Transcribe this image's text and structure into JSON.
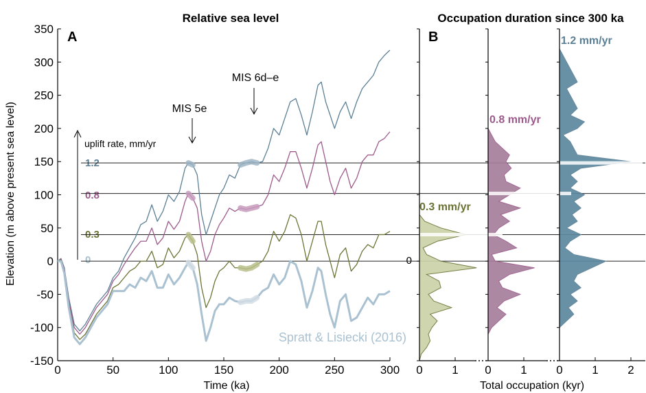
{
  "colors": {
    "rate_1_2": "#5b7f95",
    "rate_0_8": "#9c5a8b",
    "rate_0_3": "#6b7335",
    "rate_0": "#a9c1d1",
    "fill_1_2": "#5d889f",
    "fill_0_8": "#a57e9c",
    "fill_0_3": "#ccd2a8",
    "axis": "#000000"
  },
  "panel_a": {
    "letter": "A",
    "title": "Relative sea level",
    "xlabel": "Time (ka)",
    "ylabel": "Elevation (m above present sea level)",
    "uplift_label": "uplift rate, mm/yr",
    "annotation_mis5e": "MIS 5e",
    "annotation_mis6": "MIS 6d–e",
    "source": "Spratt & Lisiecki (2016)",
    "rate_labels": [
      "1.2",
      "0.8",
      "0.3",
      "0"
    ]
  },
  "panel_b": {
    "letter": "B",
    "title": "Occupation duration since 300 ka",
    "xlabel": "Total occupation (kyr)",
    "zero_label": "0",
    "rate_labels": [
      "0.3 mm/yr",
      "0.8 mm/yr",
      "1.2 mm/yr"
    ]
  },
  "chart_data": [
    {
      "type": "line",
      "title": "Relative sea level",
      "xlabel": "Time (ka)",
      "ylabel": "Elevation (m above present sea level)",
      "xlim": [
        0,
        300
      ],
      "ylim": [
        -150,
        350
      ],
      "xticks": [
        0,
        50,
        100,
        150,
        200,
        250,
        300
      ],
      "yticks": [
        -150,
        -100,
        -50,
        0,
        50,
        100,
        150,
        200,
        250,
        300,
        350
      ],
      "horizontal_lines": [
        0,
        40,
        102,
        148
      ],
      "x": [
        0,
        3,
        6,
        10,
        15,
        20,
        25,
        30,
        35,
        40,
        45,
        50,
        55,
        60,
        65,
        70,
        75,
        80,
        85,
        90,
        95,
        100,
        105,
        110,
        115,
        118,
        122,
        126,
        130,
        134,
        138,
        142,
        146,
        150,
        155,
        160,
        165,
        170,
        175,
        180,
        185,
        190,
        195,
        200,
        205,
        210,
        215,
        220,
        225,
        230,
        235,
        238,
        242,
        246,
        250,
        255,
        260,
        265,
        270,
        275,
        280,
        285,
        290,
        295,
        300
      ],
      "series": [
        {
          "name": "1.2",
          "values": [
            0,
            4,
            -10,
            -55,
            -95,
            -105,
            -95,
            -80,
            -65,
            -55,
            -45,
            -25,
            -15,
            5,
            20,
            35,
            55,
            60,
            85,
            60,
            75,
            100,
            90,
            105,
            140,
            148,
            145,
            130,
            70,
            40,
            60,
            80,
            100,
            110,
            130,
            125,
            145,
            148,
            150,
            148,
            150,
            170,
            200,
            190,
            215,
            240,
            245,
            220,
            190,
            225,
            265,
            270,
            240,
            220,
            200,
            225,
            240,
            215,
            240,
            260,
            270,
            280,
            300,
            310,
            318
          ]
        },
        {
          "name": "0.8",
          "values": [
            0,
            3,
            -12,
            -60,
            -100,
            -110,
            -100,
            -85,
            -70,
            -60,
            -50,
            -30,
            -20,
            -5,
            8,
            20,
            30,
            30,
            50,
            25,
            35,
            60,
            48,
            60,
            90,
            102,
            95,
            80,
            30,
            0,
            15,
            40,
            55,
            65,
            80,
            75,
            80,
            78,
            80,
            82,
            85,
            100,
            130,
            120,
            140,
            165,
            165,
            140,
            110,
            140,
            175,
            180,
            150,
            120,
            100,
            125,
            140,
            110,
            125,
            150,
            160,
            160,
            180,
            185,
            195
          ]
        },
        {
          "name": "0.3",
          "values": [
            0,
            2,
            -15,
            -65,
            -108,
            -118,
            -110,
            -95,
            -80,
            -70,
            -60,
            -40,
            -35,
            -25,
            -15,
            -10,
            0,
            0,
            15,
            -10,
            -5,
            20,
            5,
            15,
            35,
            40,
            30,
            10,
            -40,
            -70,
            -55,
            -30,
            -15,
            -10,
            0,
            -10,
            -10,
            -12,
            -10,
            -5,
            0,
            15,
            45,
            30,
            45,
            70,
            65,
            40,
            0,
            30,
            60,
            60,
            25,
            0,
            -25,
            10,
            20,
            -15,
            -5,
            15,
            25,
            20,
            40,
            40,
            45
          ]
        },
        {
          "name": "0",
          "values": [
            0,
            0,
            -18,
            -70,
            -115,
            -125,
            -115,
            -100,
            -85,
            -75,
            -65,
            -45,
            -45,
            -45,
            -35,
            -40,
            -25,
            -30,
            -15,
            -40,
            -40,
            -20,
            -35,
            -25,
            -10,
            -2,
            -10,
            -35,
            -80,
            -120,
            -100,
            -75,
            -65,
            -65,
            -55,
            -60,
            -62,
            -60,
            -60,
            -55,
            -45,
            -40,
            -20,
            -35,
            -25,
            0,
            -5,
            -30,
            -70,
            -45,
            -10,
            -15,
            -50,
            -80,
            -100,
            -60,
            -50,
            -90,
            -85,
            -70,
            -55,
            -65,
            -50,
            -50,
            -45
          ]
        }
      ]
    },
    {
      "type": "area",
      "title": "Occupation duration since 300 ka",
      "xlabel": "Total occupation (kyr)",
      "xlim_per_panel": [
        0,
        2
      ],
      "xticks": [
        0,
        1,
        2
      ],
      "elevation": [
        -150,
        -140,
        -130,
        -120,
        -110,
        -100,
        -90,
        -80,
        -70,
        -60,
        -50,
        -40,
        -30,
        -20,
        -10,
        0,
        10,
        20,
        30,
        40,
        50,
        60,
        70,
        80,
        90,
        100,
        110,
        120,
        130,
        140,
        150,
        160,
        170,
        180,
        190,
        200,
        210,
        220,
        230,
        240,
        250,
        260,
        270,
        280,
        290,
        300,
        310,
        320
      ],
      "series": [
        {
          "name": "0.3 mm/yr",
          "values": [
            0,
            0.05,
            0.2,
            0.3,
            0.25,
            0.35,
            0.5,
            0.3,
            0.9,
            0.4,
            0.25,
            0.6,
            0.55,
            0.2,
            1.6,
            0.6,
            0.2,
            0.1,
            0.5,
            1.3,
            0.6,
            0.15,
            0,
            0,
            0,
            0,
            0,
            0,
            0,
            0,
            0,
            0,
            0,
            0,
            0,
            0,
            0,
            0,
            0,
            0,
            0,
            0,
            0,
            0,
            0,
            0,
            0,
            0
          ]
        },
        {
          "name": "0.8 mm/yr",
          "values": [
            0,
            0,
            0,
            0,
            0,
            0.1,
            0.3,
            0.5,
            0.25,
            0.45,
            0.9,
            0.4,
            0.3,
            0.6,
            1.3,
            0.2,
            0.1,
            0.8,
            0.5,
            0.15,
            0.3,
            0.6,
            0.35,
            0.9,
            0.3,
            0.6,
            0.9,
            0.5,
            0.45,
            0.65,
            0.5,
            0.6,
            0.4,
            0.2,
            0.1,
            0,
            0,
            0,
            0,
            0,
            0,
            0,
            0,
            0,
            0,
            0,
            0,
            0
          ]
        },
        {
          "name": "1.2 mm/yr",
          "values": [
            0,
            0,
            0,
            0,
            0,
            0,
            0.2,
            0.4,
            0.25,
            0.5,
            0.3,
            0.6,
            0.4,
            0.5,
            0.9,
            1.3,
            0.4,
            0.15,
            0.3,
            0.6,
            0.2,
            0.5,
            0.35,
            0.6,
            0.4,
            0.7,
            0.3,
            0.5,
            0.3,
            0.6,
            2.0,
            0.5,
            0.4,
            0.3,
            0.1,
            0.5,
            0.7,
            0.3,
            0.5,
            0.4,
            0.3,
            0.2,
            0.5,
            0.4,
            0.3,
            0.2,
            0.1,
            0
          ]
        }
      ]
    }
  ]
}
